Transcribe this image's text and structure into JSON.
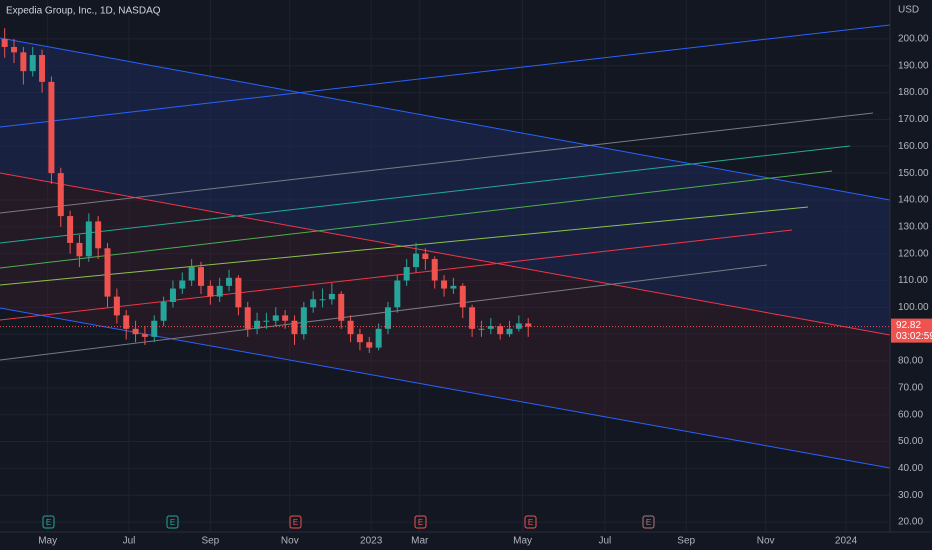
{
  "chart_data": {
    "type": "candlestick",
    "title": "Expedia Group, Inc., 1D, NASDAQ",
    "currency": "USD",
    "up_color": "#26a69a",
    "down_color": "#ef5350",
    "x": [
      0.5,
      1.5,
      2.5,
      3.5,
      4.5,
      5.5,
      6.5,
      7.5,
      8.5,
      9.5,
      10.5,
      11.5,
      12.5,
      13.5,
      14.5,
      15.5,
      16.5,
      17.5,
      18.5,
      19.5,
      20.5,
      21.5,
      22.5,
      23.5,
      24.5,
      25.5,
      26.5,
      27.5,
      28.5,
      29.5,
      30.5,
      31.5,
      32.5,
      33.5,
      34.5,
      35.5,
      36.5,
      37.5,
      38.5,
      39.5,
      40.5,
      41.5,
      42.5,
      43.5,
      44.5,
      45.5,
      46.5,
      47.5,
      48.5,
      49.5,
      50.5,
      51.5,
      52.5,
      53.5,
      54.5,
      55.5,
      56.5
    ],
    "open": [
      200,
      197,
      195,
      188,
      194,
      184,
      150,
      134,
      124,
      119,
      132,
      122,
      104,
      97,
      92,
      90,
      89,
      95,
      102,
      107,
      110,
      115,
      108,
      104,
      108,
      111,
      100,
      92,
      95,
      95,
      97,
      95,
      90,
      100,
      103,
      103,
      105,
      95,
      90,
      87,
      85,
      92,
      100,
      110,
      115,
      120,
      118,
      110,
      107,
      108,
      100,
      92,
      92,
      93,
      90,
      92,
      94
    ],
    "high": [
      204,
      200,
      197,
      197,
      196,
      186,
      152,
      136,
      127,
      135,
      134,
      124,
      107,
      99,
      95,
      93,
      97,
      104,
      110,
      113,
      118,
      117,
      110,
      111,
      114,
      112,
      102,
      98,
      98,
      100,
      99,
      97,
      102,
      106,
      107,
      109,
      106,
      97,
      92,
      89,
      94,
      102,
      112,
      118,
      124,
      122,
      119,
      112,
      111,
      109,
      101,
      95,
      96,
      94,
      95,
      97,
      96
    ],
    "low": [
      193,
      191,
      183,
      186,
      180,
      146,
      130,
      120,
      115,
      117,
      118,
      100,
      94,
      88,
      87,
      86,
      87,
      93,
      100,
      105,
      108,
      105,
      101,
      102,
      106,
      97,
      89,
      90,
      92,
      93,
      92,
      86,
      88,
      98,
      100,
      101,
      92,
      87,
      84,
      83,
      84,
      90,
      98,
      108,
      113,
      114,
      107,
      104,
      105,
      96,
      89,
      89,
      90,
      88,
      89,
      91,
      89
    ],
    "close": [
      197,
      195,
      188,
      194,
      184,
      150,
      134,
      124,
      119,
      132,
      122,
      104,
      97,
      92,
      90,
      89,
      95,
      102,
      107,
      110,
      115,
      108,
      104,
      108,
      111,
      100,
      92,
      95,
      95,
      97,
      95,
      90,
      100,
      103,
      103,
      105,
      95,
      90,
      87,
      85,
      92,
      100,
      110,
      115,
      120,
      118,
      110,
      107,
      108,
      100,
      92,
      92,
      93,
      90,
      92,
      94,
      92.82
    ],
    "last_price": 92.82,
    "countdown": "03:02:59",
    "xlim": [
      0,
      95.2
    ],
    "xticks": [
      {
        "value": 5.1,
        "label": "May"
      },
      {
        "value": 13.8,
        "label": "Jul"
      },
      {
        "value": 22.5,
        "label": "Sep"
      },
      {
        "value": 31.0,
        "label": "Nov"
      },
      {
        "value": 39.7,
        "label": "2023"
      },
      {
        "value": 44.9,
        "label": "Mar"
      },
      {
        "value": 55.9,
        "label": "May"
      },
      {
        "value": 64.7,
        "label": "Jul"
      },
      {
        "value": 73.4,
        "label": "Sep"
      },
      {
        "value": 81.9,
        "label": "Nov"
      },
      {
        "value": 90.5,
        "label": "2024"
      }
    ],
    "ylim": [
      16.3,
      214.5
    ],
    "yticks": [
      {
        "value": 20,
        "label": "20.00"
      },
      {
        "value": 30,
        "label": "30.00"
      },
      {
        "value": 40,
        "label": "40.00"
      },
      {
        "value": 50,
        "label": "50.00"
      },
      {
        "value": 60,
        "label": "60.00"
      },
      {
        "value": 70,
        "label": "70.00"
      },
      {
        "value": 80,
        "label": "80.00"
      },
      {
        "value": 90,
        "label": "90.00"
      },
      {
        "value": 100,
        "label": "100.00"
      },
      {
        "value": 110,
        "label": "110.00"
      },
      {
        "value": 120,
        "label": "120.00"
      },
      {
        "value": 130,
        "label": "130.00"
      },
      {
        "value": 140,
        "label": "140.00"
      },
      {
        "value": 150,
        "label": "150.00"
      },
      {
        "value": 160,
        "label": "160.00"
      },
      {
        "value": 170,
        "label": "170.00"
      },
      {
        "value": 180,
        "label": "180.00"
      },
      {
        "value": 190,
        "label": "190.00"
      },
      {
        "value": 200,
        "label": "200.00"
      }
    ],
    "grid": true,
    "earnings_markers": [
      "E",
      "E",
      "E",
      "E",
      "E",
      "E"
    ]
  }
}
